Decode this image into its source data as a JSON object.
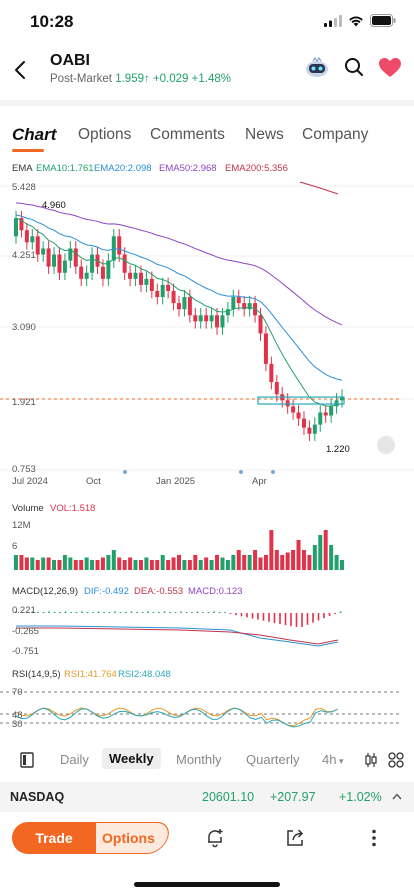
{
  "status": {
    "time": "10:28"
  },
  "header": {
    "ticker": "OABI",
    "session_label": "Post-Market",
    "price": "1.959",
    "change": "+0.029",
    "change_pct": "+1.48%"
  },
  "tabs": [
    "Chart",
    "Options",
    "Comments",
    "News",
    "Company"
  ],
  "chart": {
    "ema_label": "EMA",
    "ema10": "EMA10:1.761",
    "ema20": "EMA20:2.098",
    "ema50": "EMA50:2.968",
    "ema200": "EMA200:5.356",
    "y_ticks": [
      "5.428",
      "4.251",
      "3.090",
      "1.921",
      "0.753"
    ],
    "high_label": "4.960",
    "low_label": "1.220",
    "x_ticks": [
      "Jul 2024",
      "Oct",
      "Jan 2025",
      "Apr"
    ],
    "volume_title": "Volume",
    "volume_value": "VOL:1.518",
    "volume_ticks": [
      "12M",
      "6"
    ],
    "macd_title": "MACD(12,26,9)",
    "macd_dif": "DIF:-0.492",
    "macd_dea": "DEA:-0.553",
    "macd_val": "MACD:0.123",
    "macd_ticks": [
      "0.221",
      "-0.265",
      "-0.751"
    ],
    "rsi_title": "RSI(14,9,5)",
    "rsi1": "RSI1:41.764",
    "rsi2": "RSI2:48.048",
    "rsi_ticks": [
      "70",
      "48",
      "30"
    ],
    "colors": {
      "up": "#22a06b",
      "down": "#e0334a",
      "ema10": "#22a06b",
      "ema20": "#2b8fd6",
      "ema50": "#8e44c4",
      "ema200": "#c2334a",
      "accent": "#f26722"
    }
  },
  "periods": [
    "Daily",
    "Weekly",
    "Monthly",
    "Quarterly",
    "4h"
  ],
  "index": {
    "name": "NASDAQ",
    "value": "20601.10",
    "change": "+207.97",
    "change_pct": "+1.02%"
  },
  "bottom": {
    "trade_label": "Trade",
    "options_label": "Options"
  }
}
